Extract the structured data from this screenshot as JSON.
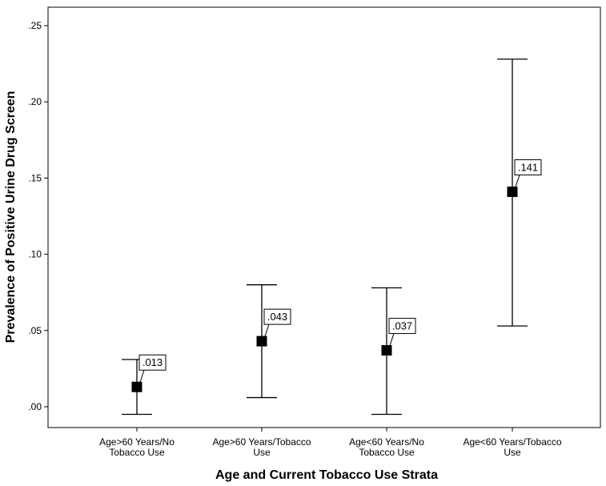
{
  "chart_data": {
    "type": "scatter",
    "title": "",
    "xlabel": "Age and Current Tobacco Use Strata",
    "ylabel": "Prevalence of Positive Urine Drug Screen",
    "ylim": [
      -0.006,
      0.252
    ],
    "yticks": [
      ".00",
      ".05",
      ".10",
      ".15",
      ".20",
      ".25"
    ],
    "ytick_values": [
      0,
      0.05,
      0.1,
      0.15,
      0.2,
      0.25
    ],
    "grid": false,
    "categories": [
      [
        "Age>60 Years/No",
        "Tobacco Use"
      ],
      [
        "Age>60 Years/Tobacco",
        "Use"
      ],
      [
        "Age<60 Years/No",
        "Tobacco Use"
      ],
      [
        "Age<60 Years/Tobacco",
        "Use"
      ]
    ],
    "points": [
      {
        "value": 0.013,
        "label": ".013",
        "lower": -0.005,
        "upper": 0.031
      },
      {
        "value": 0.043,
        "label": ".043",
        "lower": 0.006,
        "upper": 0.08
      },
      {
        "value": 0.037,
        "label": ".037",
        "lower": -0.005,
        "upper": 0.078
      },
      {
        "value": 0.141,
        "label": ".141",
        "lower": 0.053,
        "upper": 0.228
      }
    ],
    "marker_color": "#000000",
    "errorbar_color": "#000000"
  }
}
